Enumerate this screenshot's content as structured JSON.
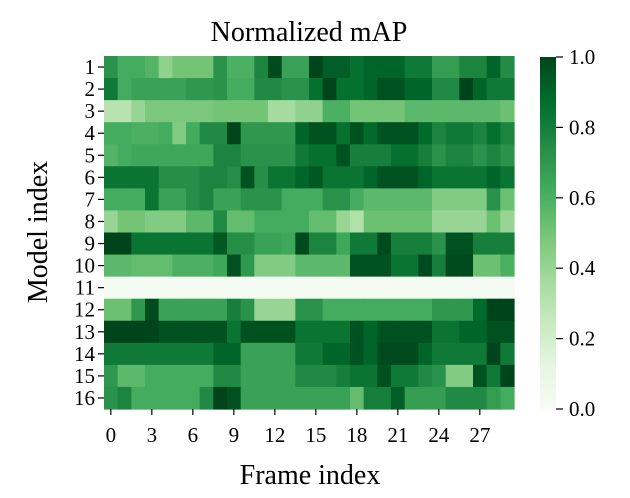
{
  "chart_data": {
    "type": "heatmap",
    "title": "Normalized mAP",
    "xlabel": "Frame index",
    "ylabel": "Model index",
    "x_tick_labels": [
      "0",
      "3",
      "6",
      "9",
      "12",
      "15",
      "18",
      "21",
      "24",
      "27"
    ],
    "x_tick_indices": [
      0,
      3,
      6,
      9,
      12,
      15,
      18,
      21,
      24,
      27
    ],
    "rows": [
      "1",
      "2",
      "3",
      "4",
      "5",
      "6",
      "7",
      "8",
      "9",
      "10",
      "11",
      "12",
      "13",
      "14",
      "15",
      "16"
    ],
    "num_columns": 30,
    "colorbar": {
      "min": 0.0,
      "max": 1.0,
      "ticks": [
        "0.0",
        "0.2",
        "0.4",
        "0.6",
        "0.8",
        "1.0"
      ],
      "colormap": "Greens"
    },
    "values": [
      [
        0.72,
        0.62,
        0.62,
        0.58,
        0.42,
        0.5,
        0.5,
        0.5,
        0.72,
        0.6,
        0.6,
        0.78,
        0.98,
        0.66,
        0.66,
        1.0,
        0.92,
        0.92,
        0.86,
        0.9,
        0.9,
        0.9,
        0.82,
        0.82,
        0.68,
        0.68,
        0.78,
        0.78,
        0.9,
        0.75
      ],
      [
        0.82,
        0.62,
        0.66,
        0.66,
        0.66,
        0.66,
        0.7,
        0.7,
        0.72,
        0.62,
        0.62,
        0.76,
        0.76,
        0.72,
        0.72,
        0.86,
        1.0,
        0.86,
        0.86,
        0.9,
        0.96,
        0.96,
        0.9,
        0.9,
        0.76,
        0.76,
        1.0,
        0.9,
        0.82,
        0.82
      ],
      [
        0.3,
        0.3,
        0.4,
        0.48,
        0.48,
        0.48,
        0.48,
        0.48,
        0.5,
        0.5,
        0.5,
        0.5,
        0.36,
        0.36,
        0.42,
        0.42,
        0.6,
        0.6,
        0.5,
        0.5,
        0.5,
        0.5,
        0.56,
        0.56,
        0.56,
        0.56,
        0.56,
        0.56,
        0.56,
        0.52
      ],
      [
        0.62,
        0.62,
        0.6,
        0.6,
        0.62,
        0.46,
        0.62,
        0.76,
        0.76,
        1.0,
        0.7,
        0.7,
        0.7,
        0.7,
        0.9,
        0.96,
        0.96,
        0.86,
        0.96,
        0.88,
        0.96,
        0.96,
        0.96,
        0.88,
        0.78,
        0.82,
        0.82,
        0.78,
        0.86,
        0.78
      ],
      [
        0.58,
        0.62,
        0.64,
        0.64,
        0.64,
        0.64,
        0.64,
        0.64,
        0.78,
        0.78,
        0.72,
        0.72,
        0.72,
        0.72,
        0.82,
        0.86,
        0.86,
        0.96,
        0.8,
        0.8,
        0.8,
        0.86,
        0.86,
        0.8,
        0.72,
        0.78,
        0.78,
        0.72,
        0.78,
        0.72
      ],
      [
        0.84,
        0.84,
        0.84,
        0.84,
        0.74,
        0.74,
        0.74,
        0.78,
        0.78,
        0.74,
        0.96,
        0.74,
        0.84,
        0.84,
        0.9,
        0.94,
        0.84,
        0.84,
        0.84,
        0.9,
        0.96,
        0.96,
        0.96,
        0.9,
        0.84,
        0.84,
        0.84,
        0.84,
        0.9,
        0.84
      ],
      [
        0.62,
        0.62,
        0.62,
        0.84,
        0.66,
        0.66,
        0.74,
        0.78,
        0.66,
        0.66,
        0.72,
        0.72,
        0.72,
        0.62,
        0.62,
        0.62,
        0.72,
        0.72,
        0.62,
        0.56,
        0.56,
        0.56,
        0.56,
        0.56,
        0.46,
        0.46,
        0.46,
        0.46,
        0.72,
        0.52
      ],
      [
        0.4,
        0.5,
        0.5,
        0.46,
        0.46,
        0.46,
        0.56,
        0.56,
        0.76,
        0.54,
        0.54,
        0.62,
        0.62,
        0.62,
        0.62,
        0.54,
        0.54,
        0.4,
        0.32,
        0.52,
        0.52,
        0.52,
        0.52,
        0.52,
        0.4,
        0.4,
        0.4,
        0.4,
        0.52,
        0.4
      ],
      [
        1.0,
        1.0,
        0.84,
        0.84,
        0.84,
        0.84,
        0.84,
        0.84,
        0.94,
        0.74,
        0.74,
        0.66,
        0.66,
        0.64,
        0.98,
        0.78,
        0.78,
        0.64,
        0.82,
        0.82,
        0.98,
        0.8,
        0.8,
        0.8,
        0.72,
        0.96,
        0.96,
        0.8,
        0.8,
        0.8
      ],
      [
        0.56,
        0.56,
        0.54,
        0.54,
        0.54,
        0.6,
        0.6,
        0.6,
        0.64,
        0.96,
        0.7,
        0.46,
        0.46,
        0.46,
        0.56,
        0.56,
        0.56,
        0.56,
        0.96,
        0.96,
        0.96,
        0.84,
        0.84,
        0.98,
        0.8,
        0.98,
        0.98,
        0.52,
        0.52,
        0.6
      ],
      [
        0.02,
        0.02,
        0.02,
        0.02,
        0.02,
        0.02,
        0.02,
        0.02,
        0.02,
        0.02,
        0.02,
        0.02,
        0.02,
        0.02,
        0.02,
        0.02,
        0.02,
        0.02,
        0.02,
        0.02,
        0.02,
        0.02,
        0.02,
        0.02,
        0.02,
        0.02,
        0.02,
        0.02,
        0.02,
        0.02
      ],
      [
        0.52,
        0.52,
        0.7,
        0.98,
        0.66,
        0.66,
        0.66,
        0.66,
        0.66,
        0.8,
        0.72,
        0.4,
        0.4,
        0.4,
        0.72,
        0.72,
        0.62,
        0.62,
        0.62,
        0.62,
        0.62,
        0.62,
        0.62,
        0.62,
        0.7,
        0.7,
        0.7,
        0.88,
        1.0,
        1.0
      ],
      [
        1.0,
        1.0,
        1.0,
        1.0,
        0.96,
        0.96,
        0.96,
        0.96,
        0.96,
        0.84,
        0.96,
        0.96,
        0.96,
        0.96,
        0.84,
        0.84,
        0.84,
        0.84,
        0.96,
        0.9,
        0.96,
        0.96,
        0.96,
        0.96,
        0.84,
        0.84,
        0.9,
        0.9,
        0.96,
        0.96
      ],
      [
        0.82,
        0.82,
        0.82,
        0.82,
        0.82,
        0.82,
        0.82,
        0.82,
        0.9,
        0.9,
        0.66,
        0.66,
        0.66,
        0.66,
        0.82,
        0.82,
        0.9,
        0.9,
        0.96,
        0.9,
        0.98,
        0.98,
        0.98,
        0.9,
        0.82,
        0.82,
        0.82,
        0.82,
        1.0,
        0.82
      ],
      [
        0.7,
        0.56,
        0.56,
        0.62,
        0.62,
        0.62,
        0.62,
        0.62,
        0.76,
        0.76,
        0.66,
        0.66,
        0.66,
        0.66,
        0.76,
        0.76,
        0.76,
        0.8,
        0.84,
        0.84,
        0.96,
        0.82,
        0.82,
        0.76,
        0.72,
        0.46,
        0.46,
        0.96,
        0.82,
        1.0
      ],
      [
        0.72,
        0.78,
        0.62,
        0.62,
        0.62,
        0.62,
        0.62,
        0.76,
        1.0,
        0.96,
        0.66,
        0.66,
        0.66,
        0.66,
        0.66,
        0.66,
        0.66,
        0.66,
        0.54,
        0.8,
        0.8,
        0.92,
        0.68,
        0.68,
        0.68,
        0.76,
        0.76,
        0.76,
        0.68,
        0.62
      ]
    ]
  }
}
